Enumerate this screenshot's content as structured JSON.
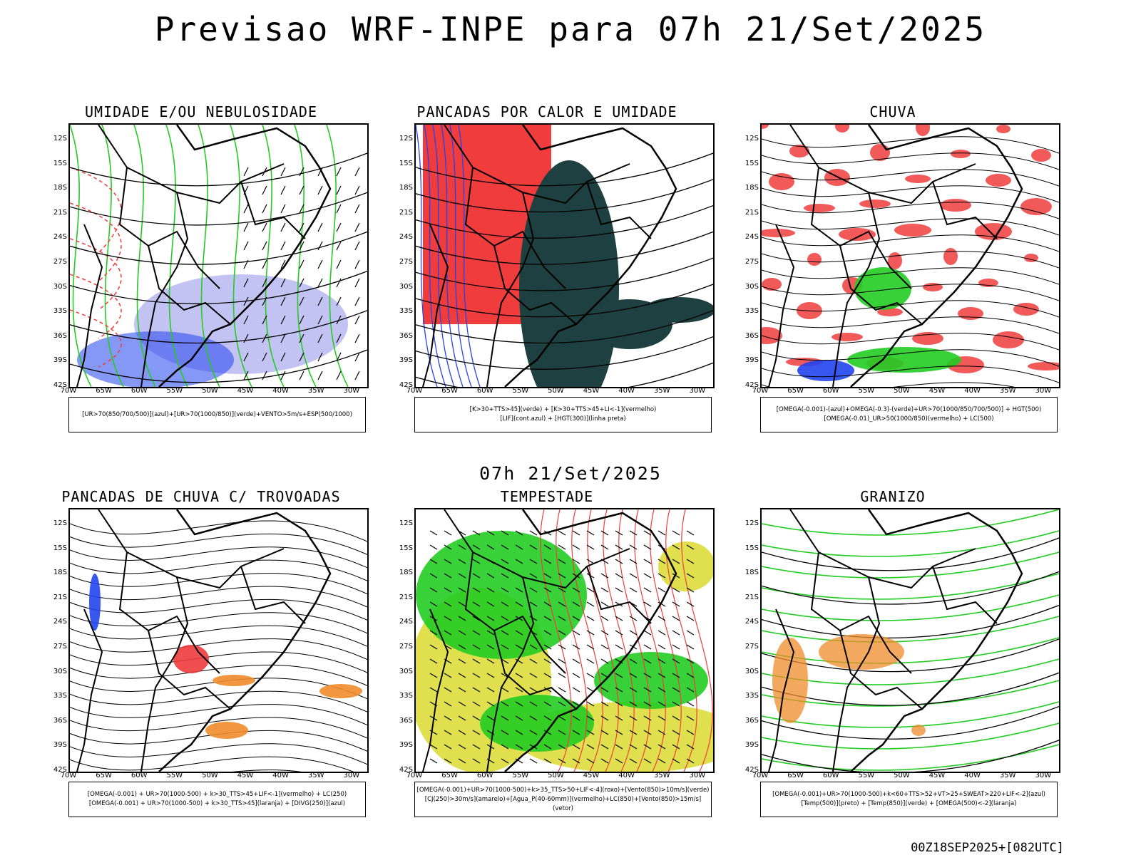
{
  "title": "Previsao WRF-INPE  para 07h 21/Set/2025",
  "subtitle": "07h 21/Set/2025",
  "footer": "00Z18SEP2025+[082UTC]",
  "lat_ticks": [
    "12S",
    "15S",
    "18S",
    "21S",
    "24S",
    "27S",
    "30S",
    "33S",
    "36S",
    "39S",
    "42S"
  ],
  "lon_ticks": [
    "70W",
    "65W",
    "60W",
    "55W",
    "50W",
    "45W",
    "40W",
    "35W",
    "30W"
  ],
  "colors": {
    "red": "#f03c3c",
    "green": "#22cc22",
    "blue": "#2244ee",
    "darkgreen": "#1e4040",
    "yellow": "#dada30",
    "orange": "#ee8c2a",
    "lavender": "#b4b4f0",
    "black": "#000000"
  },
  "panels": [
    {
      "title": "UMIDADE E/OU NEBULOSIDADE",
      "legend": [
        "[UR>70(850/700/500)](azul)+[UR>70(1000/850)](verde)+VENTO>5m/s+ESP(500/1000)"
      ]
    },
    {
      "title": "PANCADAS POR CALOR E UMIDADE",
      "legend": [
        "[K>30+TTS>45](verde) + [K>30+TTS>45+LI<-1](vermelho)",
        "[LIF](cont.azul) + [HGT(300)](linha preta)"
      ]
    },
    {
      "title": "CHUVA",
      "legend": [
        "[OMEGA(-0.001)-(azul)+OMEGA(-0.3)-(verde)+UR>70(1000/850/700/500)] + HGT(500)",
        "[OMEGA(-0.01)_UR>50(1000/850)(vermelho) + LC(500)"
      ]
    },
    {
      "title": "PANCADAS DE CHUVA C/ TROVOADAS",
      "legend": [
        "[OMEGA(-0.001) + UR>70(1000-500) + k>30_TTS>45+LIF<-1](vermelho) + LC(250)",
        "[OMEGA(-0.001) + UR>70(1000-500) + k>30_TTS>45](laranja) + [DIVG(250)](azul)"
      ]
    },
    {
      "title": "TEMPESTADE",
      "legend": [
        "[OMEGA(-0.001)+UR>70(1000-500)+k>35_TTS>50+LIF<-4](roxo)+[Vento(850)>10m/s](verde)",
        "[CJ(250)>30m/s](amarelo)+[Agua_P(40-60mm)](vermelho)+LC(850)+[Vento(850)>15m/s](vetor)"
      ]
    },
    {
      "title": "GRANIZO",
      "legend": [
        "[OMEGA(-0.001)+UR>70(1000-500)+k<60+TTS>52+VT>25+SWEAT>220+LIF<-2](azul)",
        "[Temp(500)](preto) + [Temp(850)](verde) + [OMEGA(500)<-2](laranja)"
      ]
    }
  ]
}
